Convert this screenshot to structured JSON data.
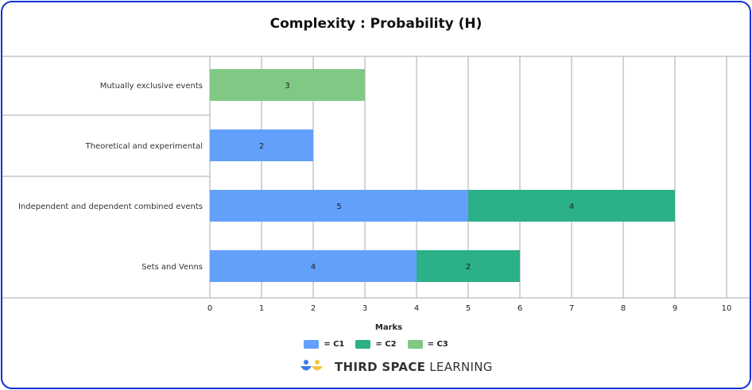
{
  "chart_data": {
    "type": "bar",
    "orientation": "horizontal",
    "stacked": true,
    "title": "Complexity : Probability (H)",
    "xlabel": "Marks",
    "ylabel": "",
    "xlim": [
      0,
      10
    ],
    "xticks": [
      "0",
      "1",
      "2",
      "3",
      "4",
      "5",
      "6",
      "7",
      "8",
      "9",
      "10"
    ],
    "grid": true,
    "legend_position": "bottom",
    "categories": [
      "Mutually exclusive events",
      "Theoretical and experimental",
      "Independent and dependent combined events",
      "Sets and Venns"
    ],
    "series": [
      {
        "name": "= C1",
        "color": "#63a0fb",
        "values": [
          0,
          2,
          5,
          4
        ]
      },
      {
        "name": "= C2",
        "color": "#2bb088",
        "values": [
          0,
          0,
          4,
          2
        ]
      },
      {
        "name": "= C3",
        "color": "#80c884",
        "values": [
          3,
          0,
          0,
          0
        ]
      }
    ]
  },
  "brand": {
    "bold": "THIRD SPACE",
    "light": "LEARNING"
  }
}
